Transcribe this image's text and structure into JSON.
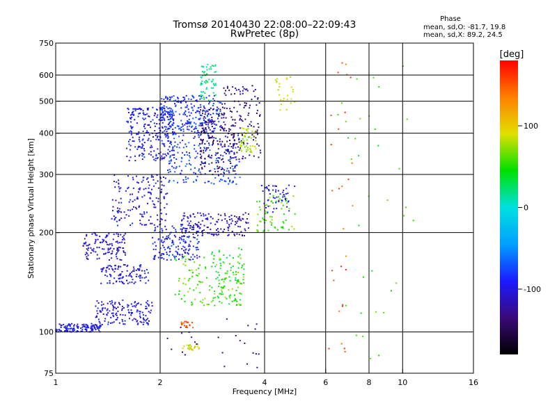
{
  "chart_data": {
    "type": "scatter",
    "title": "Tromsø 20140430 22:08:00–22:09:43",
    "subtitle": "RwPretec (8p)",
    "xlabel": "Frequency [MHz]",
    "ylabel": "Stationary phase Virtual Height [km]",
    "x_scale": "log",
    "y_scale": "log",
    "xlim": [
      1,
      16
    ],
    "ylim": [
      75,
      750
    ],
    "x_ticks": [
      1,
      2,
      4,
      6,
      8,
      10,
      16
    ],
    "x_tick_labels": [
      "1",
      "2",
      "4",
      "6",
      "8",
      "10",
      "16"
    ],
    "x_gridlines": [
      2,
      4,
      6,
      8,
      10
    ],
    "y_ticks": [
      75,
      100,
      200,
      300,
      400,
      500,
      600,
      750
    ],
    "y_tick_labels": [
      "75",
      "100",
      "200",
      "300",
      "400",
      "500",
      "600",
      "750"
    ],
    "y_gridlines": [
      100,
      200,
      300,
      400,
      500,
      600
    ],
    "grid": true,
    "stats_title": "Phase",
    "stats_lines": [
      "mean, sd,O: -81.7, 19.8",
      "mean, sd,X:  89.2, 24.5"
    ],
    "colorbar": {
      "label": "[deg]",
      "range": [
        -180,
        180
      ],
      "ticks": [
        100,
        0,
        -100
      ],
      "tick_labels": [
        "100",
        "0",
        "-100"
      ],
      "colors": [
        "#000000",
        "#3a0a7a",
        "#1a1aff",
        "#00a0ff",
        "#00e0e0",
        "#00e000",
        "#e0e000",
        "#ff8000",
        "#ff0000"
      ]
    },
    "clusters": [
      {
        "x": [
          1.0,
          1.35
        ],
        "y": [
          100,
          106
        ],
        "phase": -95,
        "n": 130
      },
      {
        "x": [
          1.3,
          1.9
        ],
        "y": [
          105,
          125
        ],
        "phase": -100,
        "n": 150
      },
      {
        "x": [
          1.2,
          1.6
        ],
        "y": [
          165,
          200
        ],
        "phase": -105,
        "n": 120
      },
      {
        "x": [
          1.35,
          1.85
        ],
        "y": [
          140,
          160
        ],
        "phase": -100,
        "n": 110
      },
      {
        "x": [
          1.45,
          2.1
        ],
        "y": [
          210,
          300
        ],
        "phase": -100,
        "n": 160
      },
      {
        "x": [
          1.6,
          2.2
        ],
        "y": [
          330,
          480
        ],
        "phase": -95,
        "n": 260
      },
      {
        "x": [
          2.0,
          3.0
        ],
        "y": [
          400,
          520
        ],
        "phase": -85,
        "n": 260
      },
      {
        "x": [
          1.9,
          2.6
        ],
        "y": [
          165,
          210
        ],
        "phase": -90,
        "n": 160
      },
      {
        "x": [
          2.3,
          3.6
        ],
        "y": [
          195,
          230
        ],
        "phase": -110,
        "n": 150
      },
      {
        "x": [
          2.1,
          3.4
        ],
        "y": [
          280,
          400
        ],
        "phase": -80,
        "n": 200
      },
      {
        "x": [
          2.6,
          3.3
        ],
        "y": [
          300,
          480
        ],
        "phase": -140,
        "n": 160
      },
      {
        "x": [
          3.0,
          3.9
        ],
        "y": [
          330,
          560
        ],
        "phase": -130,
        "n": 130
      },
      {
        "x": [
          2.2,
          3.5
        ],
        "y": [
          120,
          170
        ],
        "phase": 60,
        "n": 120
      },
      {
        "x": [
          2.8,
          3.5
        ],
        "y": [
          120,
          180
        ],
        "phase": 40,
        "n": 70
      },
      {
        "x": [
          3.4,
          3.8
        ],
        "y": [
          350,
          420
        ],
        "phase": 80,
        "n": 50
      },
      {
        "x": [
          3.8,
          4.9
        ],
        "y": [
          200,
          260
        ],
        "phase": 60,
        "n": 70
      },
      {
        "x": [
          2.3,
          2.6
        ],
        "y": [
          88,
          92
        ],
        "phase": 90,
        "n": 25
      },
      {
        "x": [
          2.3,
          2.5
        ],
        "y": [
          103,
          108
        ],
        "phase": 150,
        "n": 20
      },
      {
        "x": [
          2.6,
          2.9
        ],
        "y": [
          500,
          650
        ],
        "phase": 20,
        "n": 60
      },
      {
        "x": [
          4.3,
          4.9
        ],
        "y": [
          470,
          600
        ],
        "phase": 85,
        "n": 25
      },
      {
        "x": [
          3.9,
          4.9
        ],
        "y": [
          230,
          280
        ],
        "phase": -100,
        "n": 50
      },
      {
        "x": [
          6.1,
          7.2
        ],
        "y": [
          80,
          660
        ],
        "phase": 150,
        "n": 28
      },
      {
        "x": [
          6.5,
          10.9
        ],
        "y": [
          80,
          660
        ],
        "phase": 50,
        "n": 35
      },
      {
        "x": [
          2.0,
          3.9
        ],
        "y": [
          78,
          110
        ],
        "phase": -130,
        "n": 25
      }
    ]
  }
}
